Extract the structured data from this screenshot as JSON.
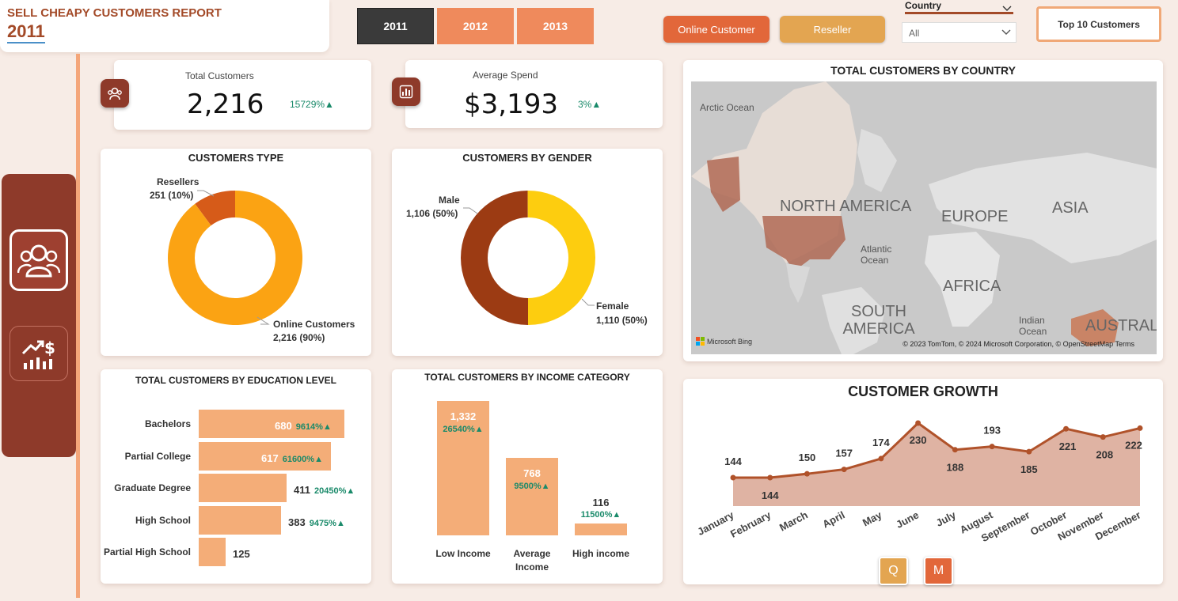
{
  "header": {
    "report_title": "SELL CHEAPY CUSTOMERS REPORT",
    "selected_year": "2011"
  },
  "year_buttons": [
    {
      "label": "2011",
      "color": "#3a3a3a",
      "selected": true
    },
    {
      "label": "2012",
      "color": "#ef8a5c",
      "selected": false
    },
    {
      "label": "2013",
      "color": "#ef8a5c",
      "selected": false
    }
  ],
  "segment_buttons": [
    {
      "label": "Online Customer",
      "color": "#e2673a"
    },
    {
      "label": "Reseller",
      "color": "#e3a551"
    }
  ],
  "country_filter": {
    "label": "Country",
    "value": "All"
  },
  "top10_button": "Top 10 Customers",
  "nav": {
    "items": [
      "customers-nav-icon",
      "sales-growth-nav-icon"
    ]
  },
  "kpis": {
    "total_customers": {
      "label": "Total Customers",
      "value": "2,216",
      "delta": "15729%▲"
    },
    "average_spend": {
      "label": "Average Spend",
      "value": "$3,193",
      "delta": "3%▲"
    }
  },
  "customers_type": {
    "title": "CUSTOMERS TYPE",
    "chart_data": {
      "type": "pie",
      "title": "CUSTOMERS TYPE",
      "categories": [
        "Resellers",
        "Online Customers"
      ],
      "values": [
        251,
        2216
      ],
      "labels": [
        "251 (10%)",
        "2,216 (90%)"
      ],
      "colors": [
        "#d65b19",
        "#fba313"
      ]
    }
  },
  "customers_gender": {
    "title": "CUSTOMERS BY GENDER",
    "chart_data": {
      "type": "pie",
      "title": "CUSTOMERS BY GENDER",
      "categories": [
        "Male",
        "Female"
      ],
      "values": [
        1106,
        1110
      ],
      "labels": [
        "1,106 (50%)",
        "1,110 (50%)"
      ],
      "colors": [
        "#9c3b13",
        "#fdcd0f"
      ]
    }
  },
  "education": {
    "title": "TOTAL CUSTOMERS BY EDUCATION LEVEL",
    "chart_data": {
      "type": "bar",
      "title": "TOTAL CUSTOMERS BY EDUCATION LEVEL",
      "categories": [
        "Bachelors",
        "Partial College",
        "Graduate Degree",
        "High School",
        "Partial High School"
      ],
      "values": [
        680,
        617,
        411,
        383,
        125
      ],
      "value_labels": [
        "680",
        "617",
        "411",
        "383",
        "125"
      ],
      "deltas": [
        "9614%▲",
        "61600%▲",
        "20450%▲",
        "9475%▲",
        ""
      ]
    }
  },
  "income": {
    "title": "TOTAL CUSTOMERS BY INCOME CATEGORY",
    "chart_data": {
      "type": "bar",
      "title": "TOTAL CUSTOMERS BY INCOME CATEGORY",
      "categories": [
        "Low Income",
        "Average Income",
        "High income"
      ],
      "values": [
        1332,
        768,
        116
      ],
      "value_labels": [
        "1,332",
        "768",
        "116"
      ],
      "deltas": [
        "26540%▲",
        "9500%▲",
        "11500%▲"
      ]
    }
  },
  "map": {
    "title": "TOTAL CUSTOMERS BY COUNTRY",
    "regions": [
      "NORTH AMERICA",
      "EUROPE",
      "ASIA",
      "AFRICA",
      "SOUTH AMERICA",
      "AUSTRALI"
    ],
    "oceans": [
      "Arctic Ocean",
      "Atlantic Ocean",
      "Indian Ocean"
    ],
    "attribution": "© 2023 TomTom, © 2024 Microsoft Corporation, © OpenStreetMap  Terms",
    "brand": "Microsoft Bing",
    "highlight_color": "#c98466"
  },
  "growth": {
    "title": "CUSTOMER GROWTH",
    "chart_data": {
      "type": "area",
      "title": "CUSTOMER GROWTH",
      "categories": [
        "January",
        "February",
        "March",
        "April",
        "May",
        "June",
        "July",
        "August",
        "September",
        "October",
        "November",
        "December"
      ],
      "values": [
        144,
        144,
        150,
        157,
        174,
        230,
        188,
        193,
        185,
        221,
        208,
        222
      ],
      "line_color": "#b0522a",
      "fill_color": "#dfb3a3"
    },
    "drill_buttons": [
      {
        "label": "Q",
        "color": "#e3a551"
      },
      {
        "label": "M",
        "color": "#e2673a"
      }
    ]
  }
}
